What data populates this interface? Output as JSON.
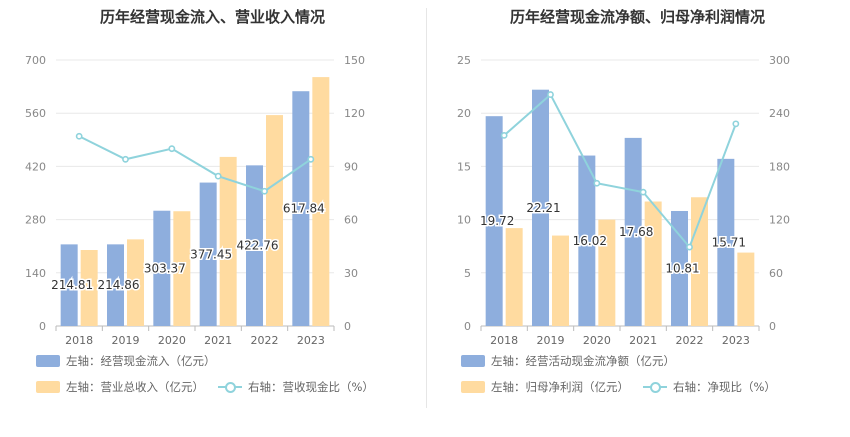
{
  "chart_data": [
    {
      "type": "bar",
      "title": "历年经营现金流入、营业收入情况",
      "categories": [
        "2018",
        "2019",
        "2020",
        "2021",
        "2022",
        "2023"
      ],
      "left_axis": {
        "ticks": [
          "0",
          "140",
          "280",
          "420",
          "560",
          "700"
        ],
        "range": [
          0,
          700
        ]
      },
      "right_axis": {
        "ticks": [
          "0",
          "30",
          "60",
          "90",
          "120",
          "150"
        ],
        "range": [
          0,
          150
        ]
      },
      "series": [
        {
          "name": "左轴：经营现金流入（亿元）",
          "axis": "left",
          "kind": "bar",
          "color": "#8eaedd",
          "values": [
            214.81,
            214.86,
            303.37,
            377.45,
            422.76,
            617.84
          ],
          "labels": [
            "214.81",
            "214.86",
            "303.37",
            "377.45",
            "422.76",
            "617.84"
          ]
        },
        {
          "name": "左轴：营业总收入（亿元）",
          "axis": "left",
          "kind": "bar",
          "color": "#ffdba0",
          "values": [
            200,
            228,
            302,
            445,
            555,
            655
          ]
        },
        {
          "name": "右轴：营收现金比（%）",
          "axis": "right",
          "kind": "line",
          "color": "#8fd3dc",
          "values": [
            107,
            94,
            100,
            84.5,
            76,
            94
          ]
        }
      ],
      "grid": true
    },
    {
      "type": "bar",
      "title": "历年经营现金流净额、归母净利润情况",
      "categories": [
        "2018",
        "2019",
        "2020",
        "2021",
        "2022",
        "2023"
      ],
      "left_axis": {
        "ticks": [
          "0",
          "5",
          "10",
          "15",
          "20",
          "25"
        ],
        "range": [
          0,
          25
        ]
      },
      "right_axis": {
        "ticks": [
          "0",
          "60",
          "120",
          "180",
          "240",
          "300"
        ],
        "range": [
          0,
          300
        ]
      },
      "series": [
        {
          "name": "左轴：经营活动现金流净额（亿元）",
          "axis": "left",
          "kind": "bar",
          "color": "#8eaedd",
          "values": [
            19.72,
            22.21,
            16.02,
            17.68,
            10.81,
            15.71
          ],
          "labels": [
            "19.72",
            "22.21",
            "16.02",
            "17.68",
            "10.81",
            "15.71"
          ]
        },
        {
          "name": "左轴：归母净利润（亿元）",
          "axis": "left",
          "kind": "bar",
          "color": "#ffdba0",
          "values": [
            9.2,
            8.5,
            10.0,
            11.7,
            12.1,
            6.9
          ]
        },
        {
          "name": "右轴：净现比（%）",
          "axis": "right",
          "kind": "line",
          "color": "#8fd3dc",
          "values": [
            215,
            261,
            161,
            151,
            89,
            228
          ]
        }
      ],
      "grid": true
    }
  ]
}
